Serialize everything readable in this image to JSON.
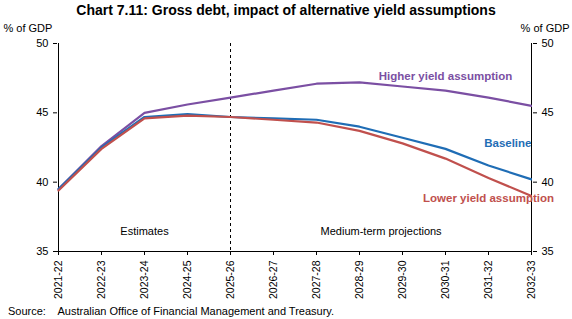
{
  "chart_data": {
    "type": "line",
    "title": "Chart 7.11: Gross debt, impact of alternative yield assumptions",
    "y_label": "% of GDP",
    "y2_label": "% of GDP",
    "source": "Source:    Australian Office of Financial Management and Treasury.",
    "categories": [
      "2021-22",
      "2022-23",
      "2023-24",
      "2024-25",
      "2025-26",
      "2026-27",
      "2027-28",
      "2028-29",
      "2029-30",
      "2030-31",
      "2031-32",
      "2032-33"
    ],
    "series": [
      {
        "name": "Higher yield assumption",
        "color": "#7b4fa3",
        "values": [
          39.5,
          42.6,
          45.0,
          45.6,
          46.1,
          46.6,
          47.1,
          47.2,
          46.9,
          46.6,
          46.1,
          45.5
        ]
      },
      {
        "name": "Baseline",
        "color": "#1f6db5",
        "values": [
          39.5,
          42.5,
          44.7,
          44.9,
          44.7,
          44.6,
          44.5,
          44.0,
          43.2,
          42.4,
          41.2,
          40.2
        ]
      },
      {
        "name": "Lower yield assumption",
        "color": "#c0504d",
        "values": [
          39.4,
          42.4,
          44.6,
          44.8,
          44.7,
          44.5,
          44.3,
          43.7,
          42.8,
          41.7,
          40.3,
          39.0
        ]
      }
    ],
    "periods": [
      {
        "label": "Estimates",
        "from": "2021-22",
        "to": "2025-26"
      },
      {
        "label": "Medium-term projections",
        "from": "2025-26",
        "to": "2032-33"
      }
    ],
    "ylim": [
      35,
      50
    ],
    "yticks": [
      35,
      40,
      45,
      50
    ],
    "y2lim": [
      35,
      50
    ],
    "y2ticks": [
      35,
      40,
      45,
      50
    ],
    "grid": false
  }
}
